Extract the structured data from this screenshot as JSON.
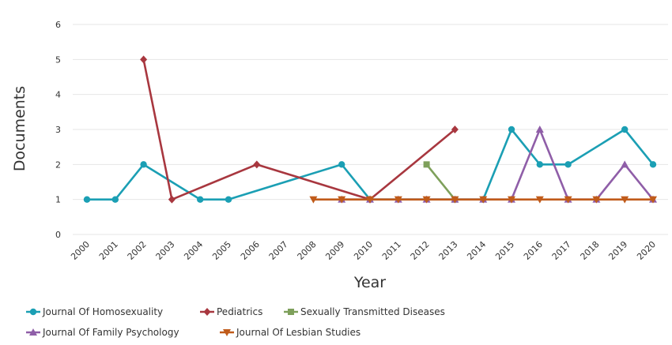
{
  "chart_data": {
    "type": "line",
    "xlabel": "Year",
    "ylabel": "Documents",
    "ylim": [
      0,
      6
    ],
    "yticks": [
      0,
      1,
      2,
      3,
      4,
      5,
      6
    ],
    "grid": "horizontal",
    "legend_position": "bottom",
    "x": [
      "2000",
      "2001",
      "2002",
      "2003",
      "2004",
      "2005",
      "2006",
      "2007",
      "2008",
      "2009",
      "2010",
      "2011",
      "2012",
      "2013",
      "2014",
      "2015",
      "2016",
      "2017",
      "2018",
      "2019",
      "2020"
    ],
    "series": [
      {
        "name": "Journal Of Homosexuality",
        "color": "#1b9fb4",
        "marker": "circle",
        "points": [
          [
            "2000",
            1
          ],
          [
            "2001",
            1
          ],
          [
            "2002",
            2
          ],
          [
            "2004",
            1
          ],
          [
            "2005",
            1
          ],
          [
            "2009",
            2
          ],
          [
            "2010",
            1
          ],
          [
            "2014",
            1
          ],
          [
            "2015",
            3
          ],
          [
            "2016",
            2
          ],
          [
            "2017",
            2
          ],
          [
            "2019",
            3
          ],
          [
            "2020",
            2
          ]
        ]
      },
      {
        "name": "Pediatrics",
        "color": "#a8373f",
        "marker": "diamond",
        "points": [
          [
            "2002",
            5
          ],
          [
            "2003",
            1
          ],
          [
            "2006",
            2
          ],
          [
            "2010",
            1
          ],
          [
            "2013",
            3
          ]
        ]
      },
      {
        "name": "Sexually Transmitted Diseases",
        "color": "#7ea05b",
        "marker": "square",
        "points": [
          [
            "2012",
            2
          ],
          [
            "2013",
            1
          ]
        ]
      },
      {
        "name": "Journal Of Family Psychology",
        "color": "#8f5ea8",
        "marker": "triangle-up",
        "points": [
          [
            "2009",
            1
          ],
          [
            "2010",
            1
          ],
          [
            "2011",
            1
          ],
          [
            "2012",
            1
          ],
          [
            "2013",
            1
          ],
          [
            "2014",
            1
          ],
          [
            "2015",
            1
          ],
          [
            "2016",
            3
          ],
          [
            "2017",
            1
          ],
          [
            "2018",
            1
          ],
          [
            "2019",
            2
          ],
          [
            "2020",
            1
          ]
        ]
      },
      {
        "name": "Journal Of Lesbian Studies",
        "color": "#c05b1a",
        "marker": "triangle-down",
        "points": [
          [
            "2008",
            1
          ],
          [
            "2009",
            1
          ],
          [
            "2010",
            1
          ],
          [
            "2011",
            1
          ],
          [
            "2012",
            1
          ],
          [
            "2013",
            1
          ],
          [
            "2014",
            1
          ],
          [
            "2015",
            1
          ],
          [
            "2016",
            1
          ],
          [
            "2017",
            1
          ],
          [
            "2018",
            1
          ],
          [
            "2019",
            1
          ],
          [
            "2020",
            1
          ]
        ]
      }
    ]
  }
}
